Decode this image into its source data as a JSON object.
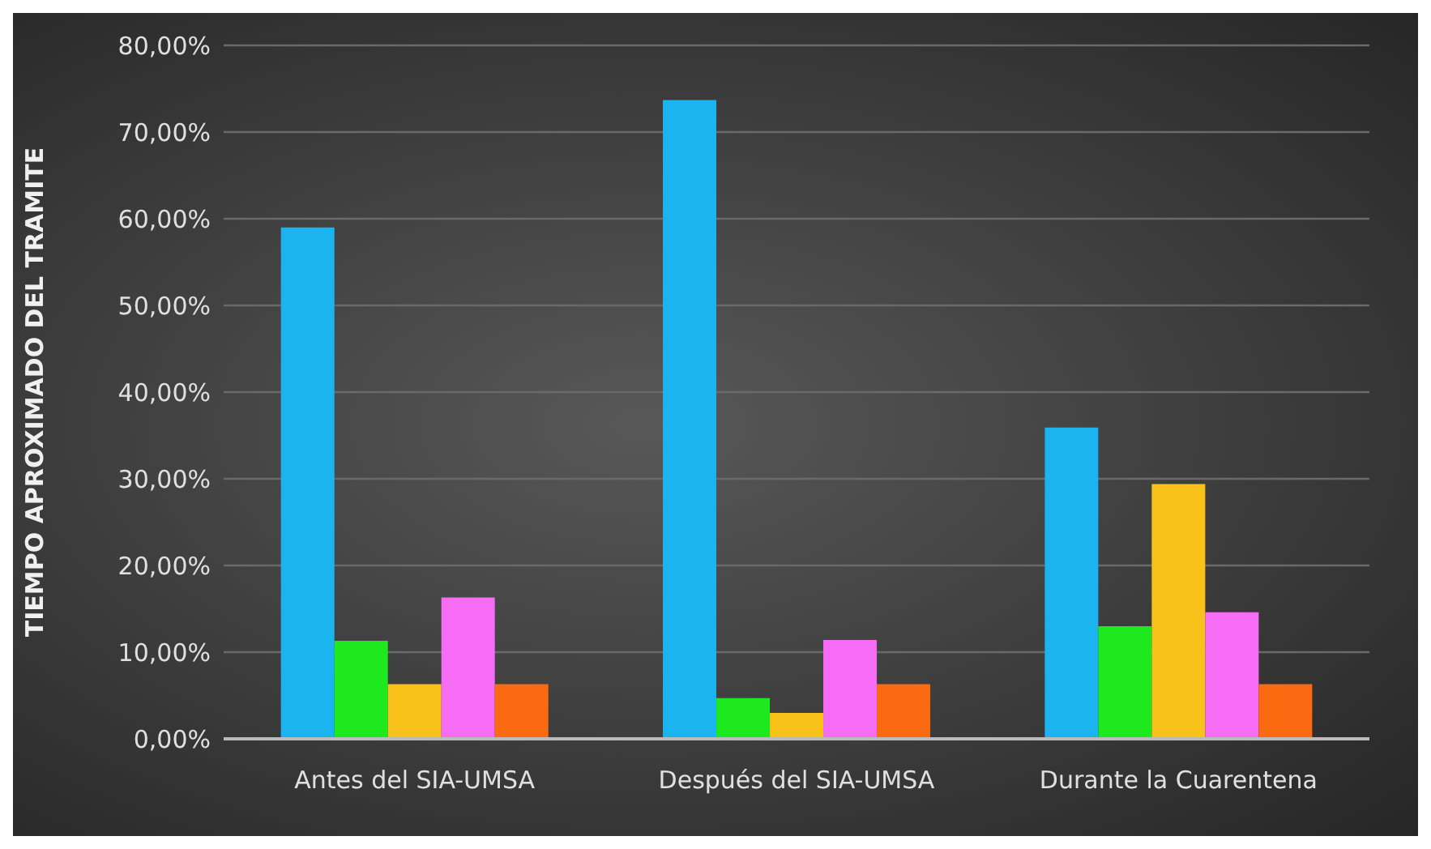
{
  "chart_data": {
    "type": "bar",
    "ylabel": "TIEMPO APROXIMADO DEL TRAMITE",
    "categories": [
      "Antes del SIA-UMSA",
      "Después del SIA-UMSA",
      "Durante la Cuarentena"
    ],
    "series": [
      {
        "color": "#1ab4f0",
        "values": [
          59.0,
          73.7,
          35.9
        ]
      },
      {
        "color": "#1ee81e",
        "values": [
          11.3,
          4.7,
          13.0
        ]
      },
      {
        "color": "#f8c21a",
        "values": [
          6.3,
          3.0,
          29.4
        ]
      },
      {
        "color": "#f76cf4",
        "values": [
          16.3,
          11.4,
          14.6
        ]
      },
      {
        "color": "#fa6a10",
        "values": [
          6.3,
          6.3,
          6.3
        ]
      }
    ],
    "ylim": [
      0,
      80
    ],
    "yticks": [
      {
        "value": 0,
        "label": "0,00%"
      },
      {
        "value": 10,
        "label": "10,00%"
      },
      {
        "value": 20,
        "label": "20,00%"
      },
      {
        "value": 30,
        "label": "30,00%"
      },
      {
        "value": 40,
        "label": "40,00%"
      },
      {
        "value": 50,
        "label": "50,00%"
      },
      {
        "value": 60,
        "label": "60,00%"
      },
      {
        "value": 70,
        "label": "70,00%"
      },
      {
        "value": 80,
        "label": "80,00%"
      }
    ],
    "grid": "y",
    "legend": false
  }
}
